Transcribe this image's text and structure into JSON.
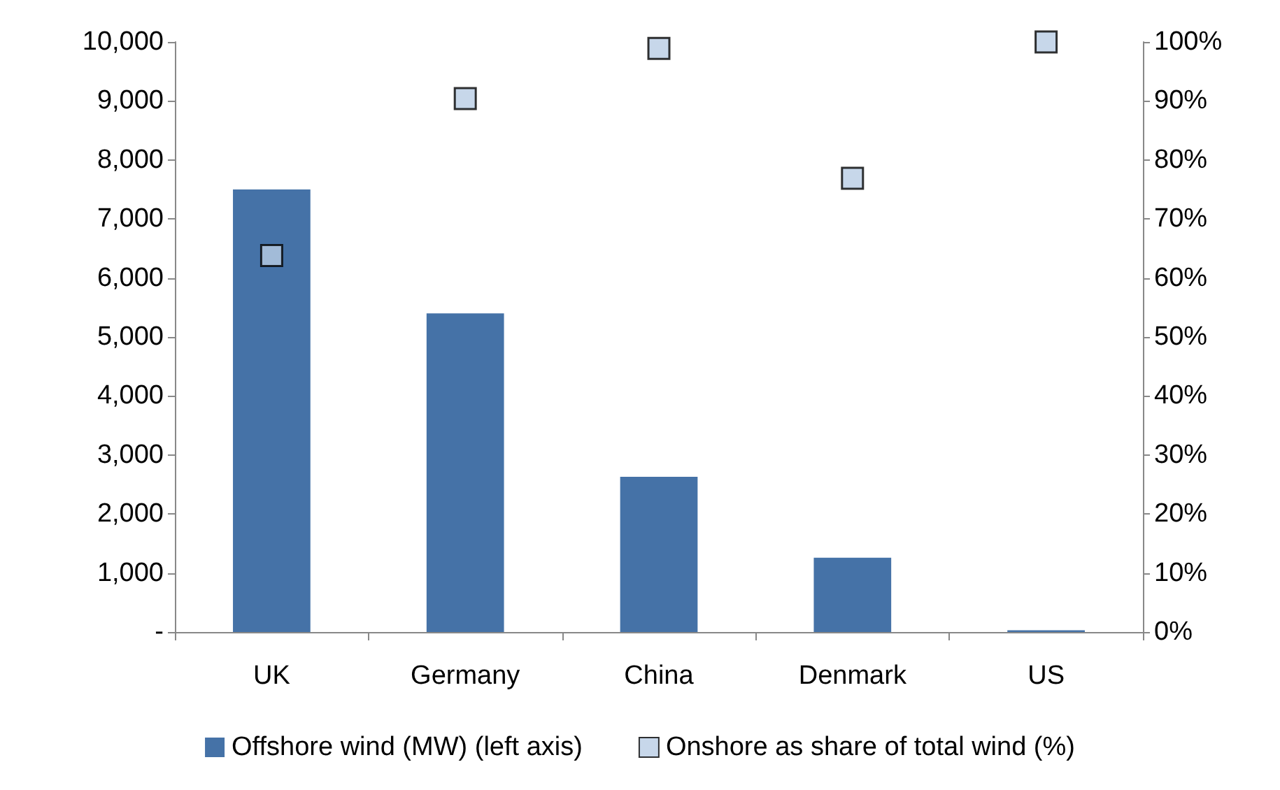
{
  "chart_data": {
    "type": "bar",
    "categories": [
      "UK",
      "Germany",
      "China",
      "Denmark",
      "US"
    ],
    "series": [
      {
        "name": "Offshore wind (MW) (left axis)",
        "color": "#4572a7",
        "values": [
          7500,
          5400,
          2630,
          1260,
          30
        ]
      },
      {
        "name": "Onshore as share of total wind (%)",
        "color": "#b9cde5",
        "type": "scatter",
        "axis": "y2",
        "values": [
          63.8,
          90.4,
          98.9,
          76.9,
          100
        ]
      }
    ],
    "ylim": [
      0,
      10000
    ],
    "yticks": [
      {
        "value": 0,
        "label": "-"
      },
      {
        "value": 1000,
        "label": "1,000"
      },
      {
        "value": 2000,
        "label": "2,000"
      },
      {
        "value": 3000,
        "label": "3,000"
      },
      {
        "value": 4000,
        "label": "4,000"
      },
      {
        "value": 5000,
        "label": "5,000"
      },
      {
        "value": 6000,
        "label": "6,000"
      },
      {
        "value": 7000,
        "label": "7,000"
      },
      {
        "value": 8000,
        "label": "8,000"
      },
      {
        "value": 9000,
        "label": "9,000"
      },
      {
        "value": 10000,
        "label": "10,000"
      }
    ],
    "y2lim": [
      0,
      100
    ],
    "y2ticks": [
      {
        "value": 0,
        "label": "0%"
      },
      {
        "value": 10,
        "label": "10%"
      },
      {
        "value": 20,
        "label": "20%"
      },
      {
        "value": 30,
        "label": "30%"
      },
      {
        "value": 40,
        "label": "40%"
      },
      {
        "value": 50,
        "label": "50%"
      },
      {
        "value": 60,
        "label": "60%"
      },
      {
        "value": 70,
        "label": "70%"
      },
      {
        "value": 80,
        "label": "80%"
      },
      {
        "value": 90,
        "label": "90%"
      },
      {
        "value": 100,
        "label": "100%"
      }
    ],
    "grid": false,
    "legend": "bottom",
    "marker": "square"
  }
}
